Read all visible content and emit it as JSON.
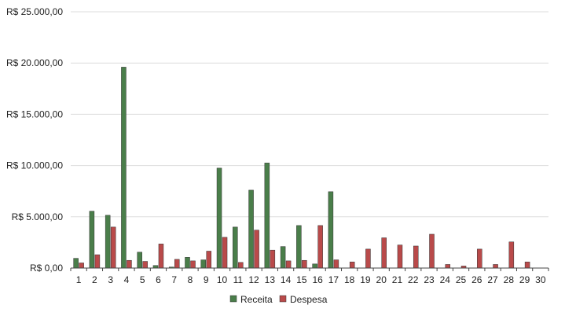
{
  "chart_data": {
    "type": "bar",
    "title": "",
    "xlabel": "",
    "ylabel": "",
    "ylim": [
      0,
      25000
    ],
    "y_ticks": [
      0,
      5000,
      10000,
      15000,
      20000,
      25000
    ],
    "y_tick_labels": [
      "R$ 0,00",
      "R$ 5.000,00",
      "R$ 10.000,00",
      "R$ 15.000,00",
      "R$ 20.000,00",
      "R$ 25.000,00"
    ],
    "grid": true,
    "legend_position": "bottom-center",
    "categories": [
      "1",
      "2",
      "3",
      "4",
      "5",
      "6",
      "7",
      "8",
      "9",
      "10",
      "11",
      "12",
      "13",
      "14",
      "15",
      "16",
      "17",
      "18",
      "19",
      "20",
      "21",
      "22",
      "23",
      "24",
      "25",
      "26",
      "27",
      "28",
      "29",
      "30"
    ],
    "series": [
      {
        "name": "Receita",
        "color": "#4a7e4a",
        "values": [
          950,
          5550,
          5150,
          19600,
          1550,
          250,
          100,
          1050,
          800,
          9750,
          4000,
          7600,
          10250,
          2100,
          4150,
          400,
          7450,
          0,
          0,
          0,
          0,
          0,
          0,
          0,
          0,
          0,
          0,
          0,
          0,
          0
        ]
      },
      {
        "name": "Despesa",
        "color": "#b94a4a",
        "values": [
          500,
          1300,
          4000,
          750,
          650,
          2350,
          850,
          700,
          1650,
          3000,
          550,
          3700,
          1750,
          700,
          750,
          4150,
          800,
          600,
          1850,
          2950,
          2250,
          2150,
          3300,
          350,
          200,
          1850,
          350,
          2550,
          600,
          0
        ]
      }
    ]
  }
}
